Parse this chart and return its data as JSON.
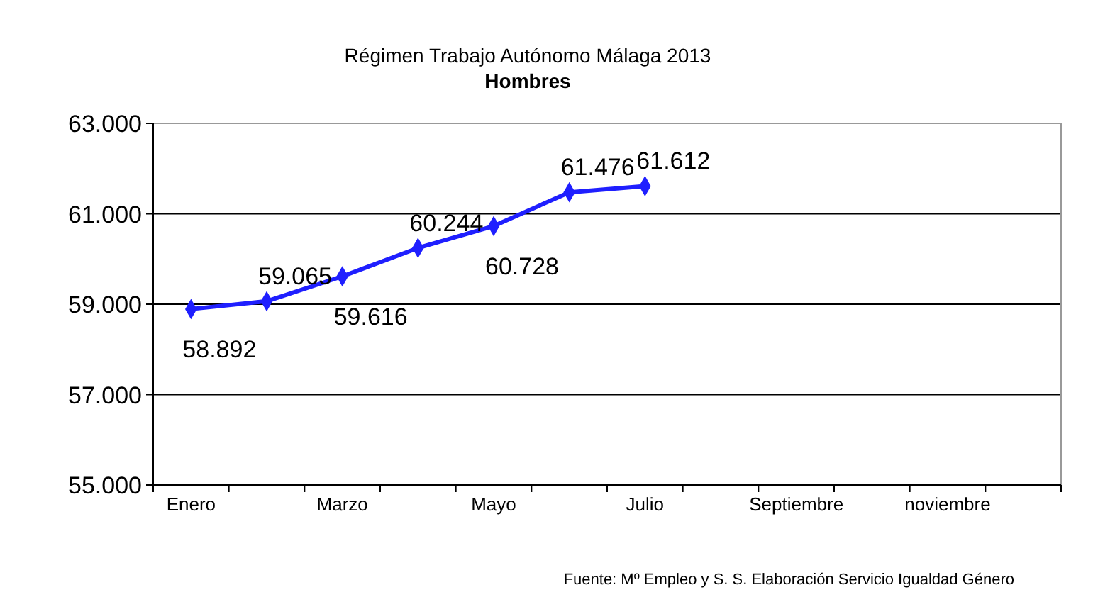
{
  "chart_data": {
    "type": "line",
    "title": "Régimen Trabajo Autónomo Málaga 2013",
    "subtitle": "Hombres",
    "categories": [
      "Enero",
      null,
      "Marzo",
      null,
      "Mayo",
      null,
      "Julio",
      null,
      "Septiembre",
      null,
      "noviembre",
      null
    ],
    "series": [
      {
        "color": "#1f1fff",
        "values": [
          58892,
          59065,
          59616,
          60244,
          60728,
          61476,
          61612,
          null,
          null,
          null,
          null,
          null
        ],
        "value_labels": [
          "58.892",
          "59.065",
          "59.616",
          "60.244",
          "60.728",
          "61.476",
          "61.612",
          null,
          null,
          null,
          null,
          null
        ]
      }
    ],
    "ylim": [
      55000,
      63000
    ],
    "yticks": [
      {
        "value": 55000,
        "label": "55.000"
      },
      {
        "value": 57000,
        "label": "57.000"
      },
      {
        "value": 59000,
        "label": "59.000"
      },
      {
        "value": 61000,
        "label": "61.000"
      },
      {
        "value": 63000,
        "label": "63.000"
      }
    ],
    "grid": "y",
    "marker": "diamond",
    "annotations": [
      "Fuente: Mº Empleo y S. S. Elaboración Servicio Igualdad Género"
    ]
  }
}
